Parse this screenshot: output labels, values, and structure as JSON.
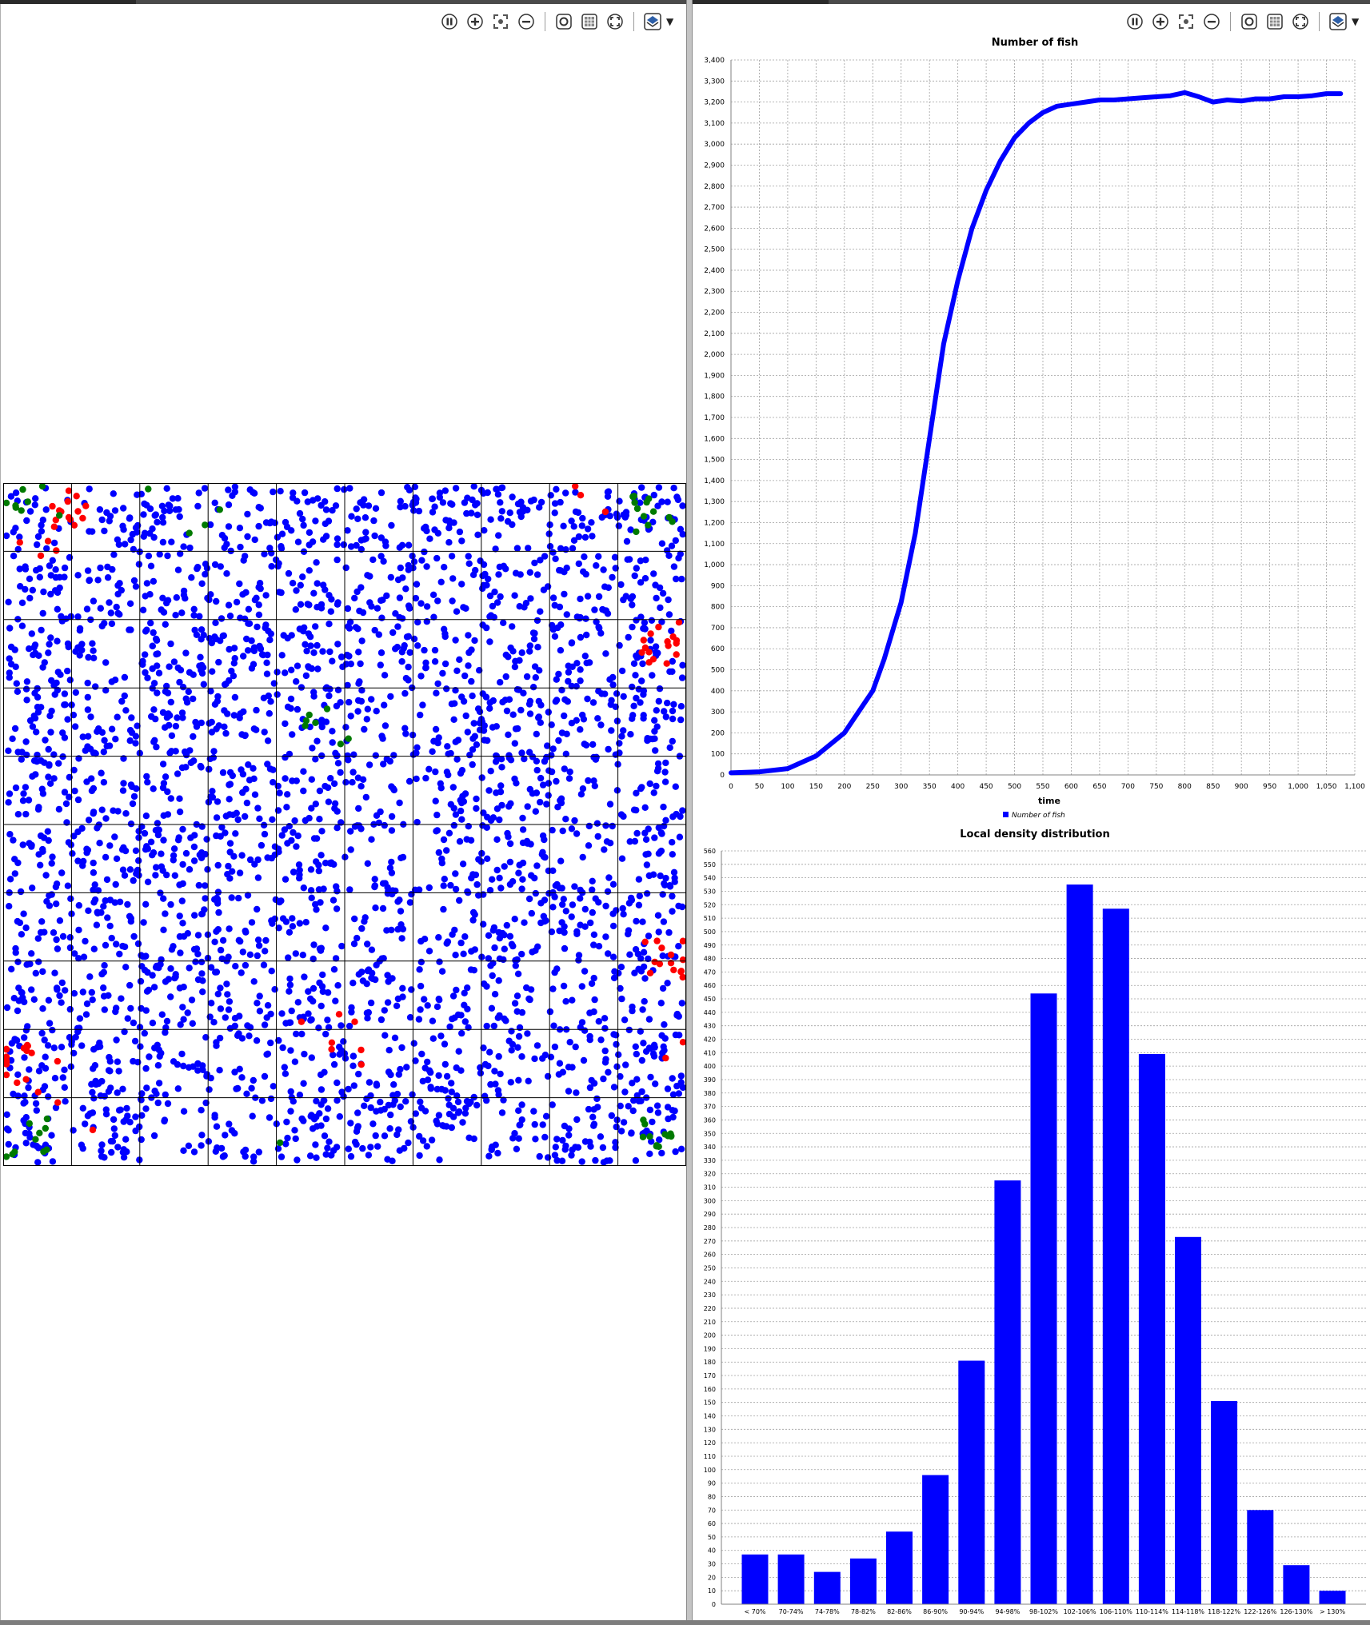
{
  "toolbar_icons": [
    "pause-icon",
    "zoom-in-icon",
    "zoom-fit-icon",
    "zoom-out-icon",
    "snapshot-icon",
    "grid-icon",
    "fullscreen-icon",
    "layers-icon",
    "dropdown-arrow-icon"
  ],
  "colors": {
    "fish": "#0000ff",
    "red_agent": "#ff0000",
    "green_agent": "#007a00",
    "grid_line": "#000000",
    "chart_grid": "#a0a0a0",
    "series": "#0000ff"
  },
  "simulation": {
    "grid_cells": 10,
    "cell_legend": [
      "blue dots: fish",
      "red dots",
      "green dots"
    ]
  },
  "chart_data": [
    {
      "type": "line",
      "title": "Number of fish",
      "xlabel": "time",
      "ylabel": "",
      "xlim": [
        0,
        1100
      ],
      "ylim": [
        0,
        3400
      ],
      "x_ticks": [
        "0",
        "50",
        "100",
        "150",
        "200",
        "250",
        "300",
        "350",
        "400",
        "450",
        "500",
        "550",
        "600",
        "650",
        "700",
        "750",
        "800",
        "850",
        "900",
        "950",
        "1,000",
        "1,050",
        "1,100"
      ],
      "y_ticks": [
        "0",
        "100",
        "200",
        "300",
        "400",
        "500",
        "600",
        "700",
        "800",
        "900",
        "1,000",
        "1,100",
        "1,200",
        "1,300",
        "1,400",
        "1,500",
        "1,600",
        "1,700",
        "1,800",
        "1,900",
        "2,000",
        "2,100",
        "2,200",
        "2,300",
        "2,400",
        "2,500",
        "2,600",
        "2,700",
        "2,800",
        "2,900",
        "3,000",
        "3,100",
        "3,200",
        "3,300",
        "3,400"
      ],
      "grid": true,
      "legend": "bottom-center",
      "series": [
        {
          "name": "Number of fish",
          "x": [
            0,
            50,
            100,
            150,
            200,
            250,
            270,
            300,
            325,
            350,
            375,
            400,
            425,
            450,
            475,
            500,
            525,
            550,
            575,
            600,
            625,
            650,
            675,
            700,
            725,
            750,
            775,
            800,
            825,
            850,
            875,
            900,
            925,
            950,
            975,
            1000,
            1025,
            1050,
            1075
          ],
          "y": [
            10,
            15,
            30,
            90,
            200,
            400,
            550,
            820,
            1150,
            1600,
            2050,
            2350,
            2600,
            2780,
            2920,
            3030,
            3100,
            3150,
            3180,
            3190,
            3200,
            3210,
            3210,
            3215,
            3220,
            3225,
            3230,
            3245,
            3225,
            3200,
            3210,
            3205,
            3215,
            3215,
            3225,
            3225,
            3230,
            3240,
            3240
          ]
        }
      ]
    },
    {
      "type": "bar",
      "title": "Local density distribution",
      "xlabel": "",
      "ylabel": "",
      "ylim": [
        0,
        560
      ],
      "y_ticks": [
        "0",
        "10",
        "20",
        "30",
        "40",
        "50",
        "60",
        "70",
        "80",
        "90",
        "100",
        "110",
        "120",
        "130",
        "140",
        "150",
        "160",
        "170",
        "180",
        "190",
        "200",
        "210",
        "220",
        "230",
        "240",
        "250",
        "260",
        "270",
        "280",
        "290",
        "300",
        "310",
        "320",
        "330",
        "340",
        "350",
        "360",
        "370",
        "380",
        "390",
        "400",
        "410",
        "420",
        "430",
        "440",
        "450",
        "460",
        "470",
        "480",
        "490",
        "500",
        "510",
        "520",
        "530",
        "540",
        "550",
        "560"
      ],
      "grid": true,
      "categories": [
        "< 70%",
        "70-74%",
        "74-78%",
        "78-82%",
        "82-86%",
        "86-90%",
        "90-94%",
        "94-98%",
        "98-102%",
        "102-106%",
        "106-110%",
        "110-114%",
        "114-118%",
        "118-122%",
        "122-126%",
        "126-130%",
        "> 130%"
      ],
      "values": [
        37,
        37,
        24,
        34,
        54,
        96,
        181,
        315,
        454,
        535,
        517,
        409,
        273,
        151,
        70,
        29,
        10
      ]
    }
  ]
}
